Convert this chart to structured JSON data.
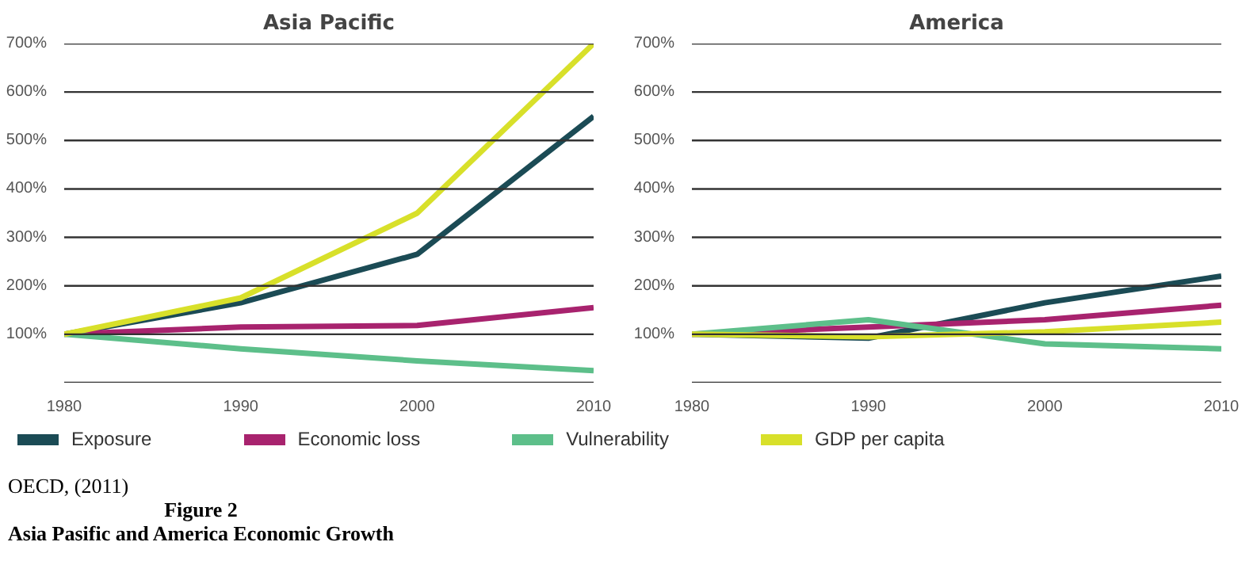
{
  "chart_data": [
    {
      "type": "line",
      "title": "Asia Pacific",
      "x": [
        1980,
        1990,
        2000,
        2010
      ],
      "xlim": [
        1980,
        2010
      ],
      "xticks": [
        1980,
        1990,
        2000,
        2010
      ],
      "ylim": [
        0,
        700
      ],
      "yticks": [
        {
          "value": 0,
          "label": null
        },
        {
          "value": 100,
          "label": "100%"
        },
        {
          "value": 200,
          "label": "200%"
        },
        {
          "value": 300,
          "label": "300%"
        },
        {
          "value": 400,
          "label": "400%"
        },
        {
          "value": 500,
          "label": "500%"
        },
        {
          "value": 600,
          "label": "600%"
        },
        {
          "value": 700,
          "label": "700%"
        }
      ],
      "grid": "y",
      "legend": "bottom",
      "marker": "none",
      "series": [
        {
          "name": "Exposure",
          "color": "#1b4b55",
          "values": [
            100,
            165,
            265,
            550
          ]
        },
        {
          "name": "Economic loss",
          "color": "#a8236e",
          "values": [
            100,
            115,
            118,
            155
          ]
        },
        {
          "name": "Vulnerability",
          "color": "#5dbf8a",
          "values": [
            100,
            70,
            45,
            25
          ]
        },
        {
          "name": "GDP per capita",
          "color": "#d8e02a",
          "values": [
            100,
            175,
            350,
            700
          ]
        }
      ],
      "annotations": [
        "OECD, (2011)",
        "Figure 2",
        "Asia Pasific and America Economic Growth"
      ]
    },
    {
      "type": "line",
      "title": "America",
      "x": [
        1980,
        1990,
        2000,
        2010
      ],
      "xlim": [
        1980,
        2010
      ],
      "xticks": [
        1980,
        1990,
        2000,
        2010
      ],
      "ylim": [
        0,
        700
      ],
      "yticks": [
        {
          "value": 0,
          "label": null
        },
        {
          "value": 100,
          "label": "100%"
        },
        {
          "value": 200,
          "label": "200%"
        },
        {
          "value": 300,
          "label": "300%"
        },
        {
          "value": 400,
          "label": "400%"
        },
        {
          "value": 500,
          "label": "500%"
        },
        {
          "value": 600,
          "label": "600%"
        },
        {
          "value": 700,
          "label": "700%"
        }
      ],
      "grid": "y",
      "marker": "none",
      "series": [
        {
          "color": "#1b4b55",
          "values": [
            100,
            92,
            165,
            220
          ]
        },
        {
          "color": "#a8236e",
          "values": [
            100,
            115,
            130,
            160
          ]
        },
        {
          "color": "#5dbf8a",
          "values": [
            100,
            130,
            80,
            70
          ]
        },
        {
          "color": "#d8e02a",
          "values": [
            100,
            95,
            105,
            125
          ]
        }
      ]
    }
  ]
}
